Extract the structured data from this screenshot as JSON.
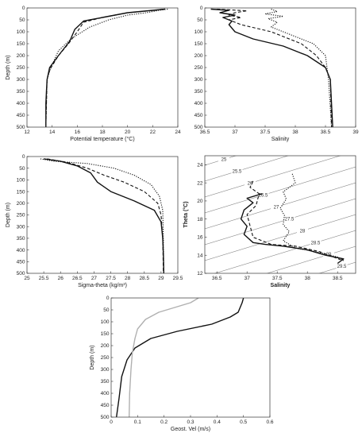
{
  "chart_data": [
    {
      "id": "temp",
      "type": "line",
      "xlabel": "Potential temperature (°C)",
      "ylabel": "Depth (m)",
      "xlim": [
        12,
        24
      ],
      "ylim": [
        500,
        0
      ],
      "xticks": [
        "12",
        "14",
        "16",
        "18",
        "20",
        "22",
        "24"
      ],
      "yticks": [
        "0",
        "50",
        "100",
        "150",
        "200",
        "250",
        "300",
        "350",
        "400",
        "450",
        "500"
      ],
      "series": [
        {
          "style": "solid",
          "x": [
            23.0,
            22.0,
            20.0,
            18.0,
            16.5,
            15.8,
            15.4,
            14.5,
            13.8,
            13.6,
            13.55,
            13.5,
            13.5
          ],
          "y": [
            5,
            10,
            20,
            40,
            55,
            90,
            140,
            200,
            250,
            300,
            350,
            400,
            500
          ]
        },
        {
          "style": "dashed",
          "x": [
            22.8,
            22.2,
            20.0,
            18.0,
            16.5,
            16.0,
            15.3,
            14.5,
            13.8,
            13.6,
            13.55,
            13.5
          ],
          "y": [
            5,
            10,
            20,
            40,
            60,
            100,
            150,
            200,
            260,
            300,
            400,
            500
          ]
        },
        {
          "style": "dotted",
          "x": [
            23.2,
            22.5,
            21.5,
            20.0,
            18.5,
            17.0,
            15.5,
            14.5,
            13.9,
            13.6,
            13.55,
            13.5
          ],
          "y": [
            5,
            10,
            20,
            30,
            50,
            80,
            130,
            180,
            250,
            300,
            400,
            500
          ]
        }
      ]
    },
    {
      "id": "sal",
      "type": "line",
      "xlabel": "Salinity",
      "ylabel": "",
      "xlim": [
        36.5,
        39
      ],
      "ylim": [
        500,
        0
      ],
      "xticks": [
        "36.5",
        "37",
        "37.5",
        "38",
        "38.5",
        "39"
      ],
      "yticks": [
        "0",
        "50",
        "100",
        "150",
        "200",
        "250",
        "300",
        "350",
        "400",
        "450",
        "500"
      ],
      "series": [
        {
          "style": "solid",
          "x": [
            36.6,
            36.9,
            36.75,
            37.0,
            36.8,
            36.95,
            36.9,
            37.0,
            37.3,
            37.8,
            38.2,
            38.5,
            38.58,
            38.6,
            38.62
          ],
          "y": [
            5,
            10,
            20,
            30,
            40,
            55,
            70,
            100,
            130,
            160,
            200,
            250,
            300,
            400,
            500
          ]
        },
        {
          "style": "dashed",
          "x": [
            36.7,
            37.2,
            37.0,
            36.9,
            37.1,
            36.9,
            37.1,
            37.6,
            38.1,
            38.35,
            38.5,
            38.58,
            38.6
          ],
          "y": [
            5,
            12,
            20,
            30,
            40,
            50,
            70,
            100,
            150,
            200,
            250,
            300,
            500
          ]
        },
        {
          "style": "dotted",
          "x": [
            37.6,
            37.7,
            37.5,
            37.8,
            37.55,
            37.7,
            37.6,
            37.9,
            38.3,
            38.5,
            38.55,
            38.6
          ],
          "y": [
            5,
            15,
            25,
            35,
            45,
            60,
            80,
            110,
            150,
            200,
            300,
            500
          ]
        }
      ]
    },
    {
      "id": "sig",
      "type": "line",
      "xlabel": "Sigma-theta (kg/m³)",
      "ylabel": "Depth (m)",
      "xlim": [
        25,
        29.5
      ],
      "ylim": [
        500,
        0
      ],
      "xticks": [
        "25",
        "25.5",
        "26",
        "26.5",
        "27",
        "27.5",
        "28",
        "28.5",
        "29",
        "29.5"
      ],
      "yticks": [
        "0",
        "50",
        "100",
        "150",
        "200",
        "250",
        "300",
        "350",
        "400",
        "450",
        "500"
      ],
      "series": [
        {
          "style": "solid",
          "x": [
            25.5,
            26.0,
            26.5,
            26.9,
            27.1,
            27.5,
            28.2,
            28.8,
            29.0,
            29.05,
            29.07,
            29.08
          ],
          "y": [
            10,
            20,
            40,
            70,
            110,
            150,
            190,
            230,
            280,
            350,
            420,
            500
          ]
        },
        {
          "style": "dashed",
          "x": [
            25.6,
            26.2,
            26.8,
            27.3,
            27.9,
            28.5,
            28.9,
            29.0,
            29.05,
            29.07
          ],
          "y": [
            10,
            25,
            50,
            80,
            110,
            150,
            200,
            250,
            350,
            500
          ]
        },
        {
          "style": "dotted",
          "x": [
            25.4,
            25.8,
            26.8,
            27.6,
            28.2,
            28.7,
            28.95,
            29.05,
            29.07,
            29.08
          ],
          "y": [
            10,
            20,
            30,
            50,
            80,
            120,
            170,
            230,
            350,
            500
          ]
        }
      ]
    },
    {
      "id": "ts",
      "type": "line",
      "xlabel": "Salinity",
      "ylabel": "Theta (°C)",
      "xlim": [
        36.3,
        38.8
      ],
      "ylim": [
        12,
        25
      ],
      "xticks": [
        "36.5",
        "37",
        "37.5",
        "38",
        "38.5"
      ],
      "yticks": [
        "12",
        "14",
        "16",
        "18",
        "20",
        "22",
        "24"
      ],
      "contours": [
        "25",
        "25.5",
        "26",
        "26.5",
        "27",
        "27.5",
        "28",
        "28.5",
        "29",
        "29.5"
      ],
      "series": [
        {
          "style": "solid",
          "x": [
            37.25,
            37.0,
            37.1,
            36.95,
            36.9,
            37.0,
            36.95,
            37.1,
            37.3,
            37.6,
            38.0,
            38.3,
            38.6,
            38.5
          ],
          "y": [
            20.8,
            20.3,
            19.8,
            19.0,
            18.0,
            17.2,
            16.3,
            15.4,
            15.2,
            15.0,
            14.6,
            14.0,
            13.6,
            13.1
          ]
        },
        {
          "style": "dashed",
          "x": [
            37.1,
            37.05,
            37.2,
            37.15,
            37.0,
            37.1,
            37.4,
            37.8,
            38.2,
            38.55
          ],
          "y": [
            22.2,
            21.5,
            20.8,
            19.5,
            18.5,
            16.0,
            15.2,
            15.0,
            14.4,
            13.5
          ]
        },
        {
          "style": "dotted",
          "x": [
            37.75,
            37.8,
            37.6,
            37.65,
            37.55,
            37.62,
            37.6,
            37.7,
            37.6,
            37.8,
            38.2,
            38.5,
            38.6
          ],
          "y": [
            23.0,
            22.0,
            21.0,
            20.2,
            19.2,
            18.4,
            17.4,
            16.6,
            15.6,
            14.8,
            14.3,
            13.8,
            13.4
          ]
        }
      ]
    },
    {
      "id": "vel",
      "type": "line",
      "xlabel": "Geost. Vel (m/s)",
      "ylabel": "Depth (m)",
      "xlim": [
        0,
        0.6
      ],
      "ylim": [
        500,
        0
      ],
      "xticks": [
        "0",
        "0.1",
        "0.2",
        "0.3",
        "0.4",
        "0.5",
        "0.6"
      ],
      "yticks": [
        "0",
        "50",
        "100",
        "150",
        "200",
        "250",
        "300",
        "350",
        "400",
        "450",
        "500"
      ],
      "series": [
        {
          "style": "solid",
          "color": "#111111",
          "x": [
            0.5,
            0.495,
            0.48,
            0.45,
            0.38,
            0.25,
            0.15,
            0.09,
            0.06,
            0.04,
            0.03,
            0.02
          ],
          "y": [
            0,
            20,
            60,
            80,
            110,
            140,
            170,
            210,
            260,
            330,
            420,
            500
          ]
        },
        {
          "style": "solid",
          "color": "#b0b0b0",
          "x": [
            0.33,
            0.3,
            0.24,
            0.18,
            0.13,
            0.1,
            0.09,
            0.08,
            0.075,
            0.07,
            0.068
          ],
          "y": [
            0,
            20,
            40,
            60,
            90,
            130,
            170,
            230,
            300,
            400,
            500
          ]
        }
      ]
    }
  ]
}
